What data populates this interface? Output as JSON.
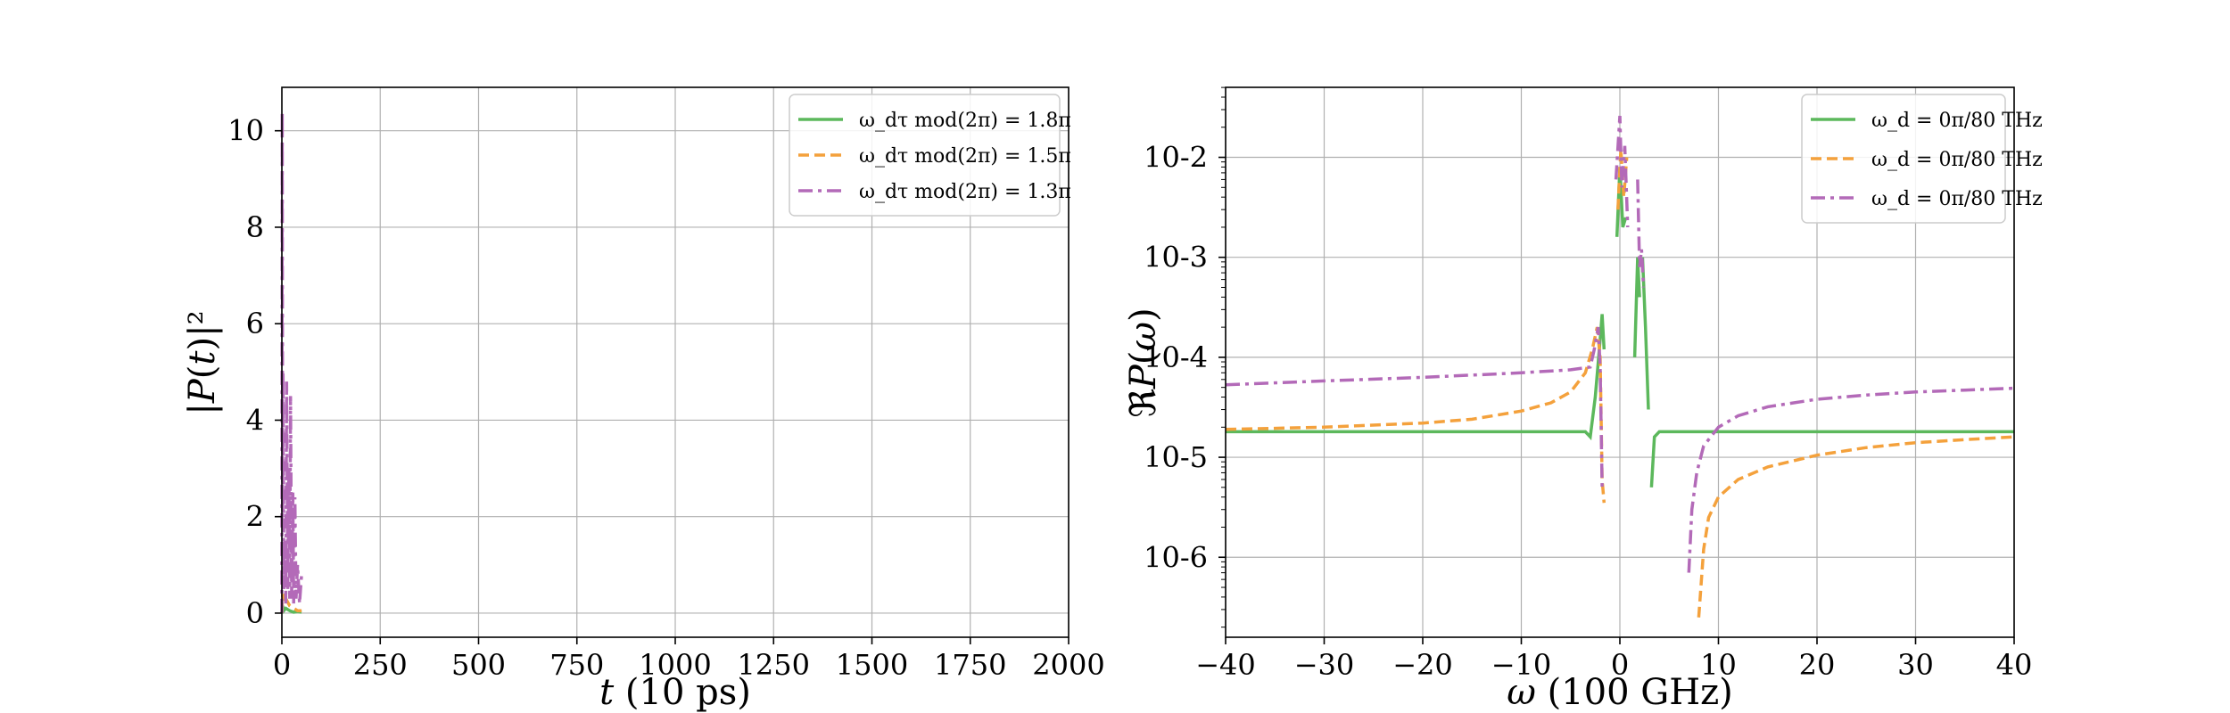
{
  "chart_data": [
    {
      "type": "line",
      "title": "",
      "xlabel": "t (10 ps)",
      "ylabel": "|P(t)|²",
      "xlim": [
        0,
        2000
      ],
      "ylim": [
        -0.5,
        10.9
      ],
      "xticks": [
        0,
        250,
        500,
        750,
        1000,
        1250,
        1500,
        1750,
        2000
      ],
      "yticks": [
        0,
        2,
        4,
        6,
        8,
        10
      ],
      "grid": true,
      "legend_position": "top-right",
      "series": [
        {
          "name": "ω_dτ mod(2π) = 1.8π",
          "color": "#5cb85c",
          "dash": "solid",
          "x": [
            0,
            2,
            5,
            10,
            20,
            30,
            40,
            50
          ],
          "y": [
            0,
            0.15,
            0.05,
            0.1,
            0.05,
            0.02,
            0.03,
            0.02
          ]
        },
        {
          "name": "ω_dτ mod(2π) = 1.5π",
          "color": "#f4a13c",
          "dash": "dashed",
          "x": [
            0,
            2,
            5,
            10,
            20,
            30,
            40,
            50
          ],
          "y": [
            0,
            0.4,
            0.2,
            0.3,
            0.15,
            0.1,
            0.05,
            0.05
          ]
        },
        {
          "name": "ω_dτ mod(2π) = 1.3π",
          "color": "#b36ab8",
          "dash": "dashdot",
          "x": [
            0,
            1,
            2,
            3,
            5,
            8,
            10,
            12,
            15,
            18,
            20,
            22,
            25,
            28,
            30,
            33,
            36,
            40,
            45,
            50
          ],
          "y": [
            0,
            10.4,
            2.0,
            5.0,
            0.5,
            1.5,
            0.2,
            4.8,
            0.5,
            3.0,
            0.3,
            4.5,
            0.3,
            2.5,
            0.2,
            2.4,
            0.3,
            1.0,
            0.2,
            0.8
          ]
        }
      ]
    },
    {
      "type": "line",
      "title": "",
      "xlabel": "ω (100 GHz)",
      "ylabel": "ℜP(ω)",
      "xlim": [
        -40,
        40
      ],
      "ylim_log10": [
        -6.8,
        -1.3
      ],
      "yscale": "log",
      "xticks": [
        -40,
        -30,
        -20,
        -10,
        0,
        10,
        20,
        30,
        40
      ],
      "ytick_labels": [
        "10-6",
        "10-5",
        "10-4",
        "10-3",
        "10-2"
      ],
      "ytick_values": [
        1e-06,
        1e-05,
        0.0001,
        0.001,
        0.01
      ],
      "grid": true,
      "legend_position": "top-right",
      "series": [
        {
          "name": "ω_d = 0π/80 THz",
          "color": "#5cb85c",
          "dash": "solid",
          "segments": [
            {
              "x": [
                -40,
                -30,
                -20,
                -10,
                -5,
                -3.5,
                -3,
                -2.5,
                -2,
                -1.8,
                -1.6
              ],
              "y": [
                1.8e-05,
                1.8e-05,
                1.8e-05,
                1.8e-05,
                1.8e-05,
                1.8e-05,
                1.6e-05,
                4e-05,
                0.00015,
                0.00027,
                0.00012
              ]
            },
            {
              "x": [
                -0.3,
                0,
                0.3,
                0.6
              ],
              "y": [
                0.0016,
                0.008,
                0.002,
                0.0025
              ]
            },
            {
              "x": [
                1.5,
                1.8,
                2.0
              ],
              "y": [
                0.0001,
                0.001,
                0.0004
              ]
            },
            {
              "x": [
                2.3,
                2.6,
                2.9
              ],
              "y": [
                0.001,
                0.0002,
                3e-05
              ]
            },
            {
              "x": [
                3.2,
                3.5,
                4,
                6,
                10,
                20,
                30,
                40
              ],
              "y": [
                5e-06,
                1.6e-05,
                1.8e-05,
                1.8e-05,
                1.8e-05,
                1.8e-05,
                1.8e-05,
                1.8e-05
              ]
            }
          ]
        },
        {
          "name": "ω_d = 0π/80 THz",
          "color": "#f4a13c",
          "dash": "dashed",
          "segments": [
            {
              "x": [
                -40,
                -30,
                -20,
                -15,
                -10,
                -7,
                -5,
                -3.5,
                -2.8,
                -2.3,
                -2.0,
                -1.8,
                -1.6
              ],
              "y": [
                1.9e-05,
                2e-05,
                2.2e-05,
                2.4e-05,
                2.9e-05,
                3.5e-05,
                4.5e-05,
                7e-05,
                0.00012,
                0.0002,
                0.0001,
                6e-06,
                3.5e-06
              ]
            },
            {
              "x": [
                -0.2,
                0.1,
                0.4,
                0.7
              ],
              "y": [
                0.003,
                0.012,
                0.004,
                0.01
              ]
            },
            {
              "x": [
                8.0,
                8.5,
                9,
                10,
                12,
                15,
                20,
                25,
                30,
                35,
                40
              ],
              "y": [
                2.5e-07,
                1.2e-06,
                2.5e-06,
                4e-06,
                6e-06,
                8e-06,
                1.05e-05,
                1.25e-05,
                1.4e-05,
                1.5e-05,
                1.6e-05
              ]
            }
          ]
        },
        {
          "name": "ω_d = 0π/80 THz",
          "color": "#b36ab8",
          "dash": "dashdot",
          "segments": [
            {
              "x": [
                -40,
                -30,
                -20,
                -10,
                -5,
                -3,
                -2.6,
                -2.2,
                -2.0,
                -1.8
              ],
              "y": [
                5.3e-05,
                5.8e-05,
                6.3e-05,
                7e-05,
                7.5e-05,
                8e-05,
                0.00012,
                0.0002,
                8e-05,
                5e-06
              ]
            },
            {
              "x": [
                -0.4,
                0,
                0.2,
                0.5,
                0.8
              ],
              "y": [
                0.006,
                0.026,
                0.005,
                0.013,
                0.002
              ]
            },
            {
              "x": [
                1.8,
                2.0,
                2.2,
                2.4
              ],
              "y": [
                0.006,
                0.0008,
                0.0012,
                0.0005
              ]
            },
            {
              "x": [
                7.0,
                7.3,
                7.8,
                8.5,
                10,
                12,
                15,
                20,
                25,
                30,
                35,
                40
              ],
              "y": [
                7e-07,
                3e-06,
                7e-06,
                1.3e-05,
                2e-05,
                2.6e-05,
                3.2e-05,
                3.8e-05,
                4.2e-05,
                4.5e-05,
                4.7e-05,
                4.9e-05
              ]
            }
          ]
        }
      ]
    }
  ]
}
